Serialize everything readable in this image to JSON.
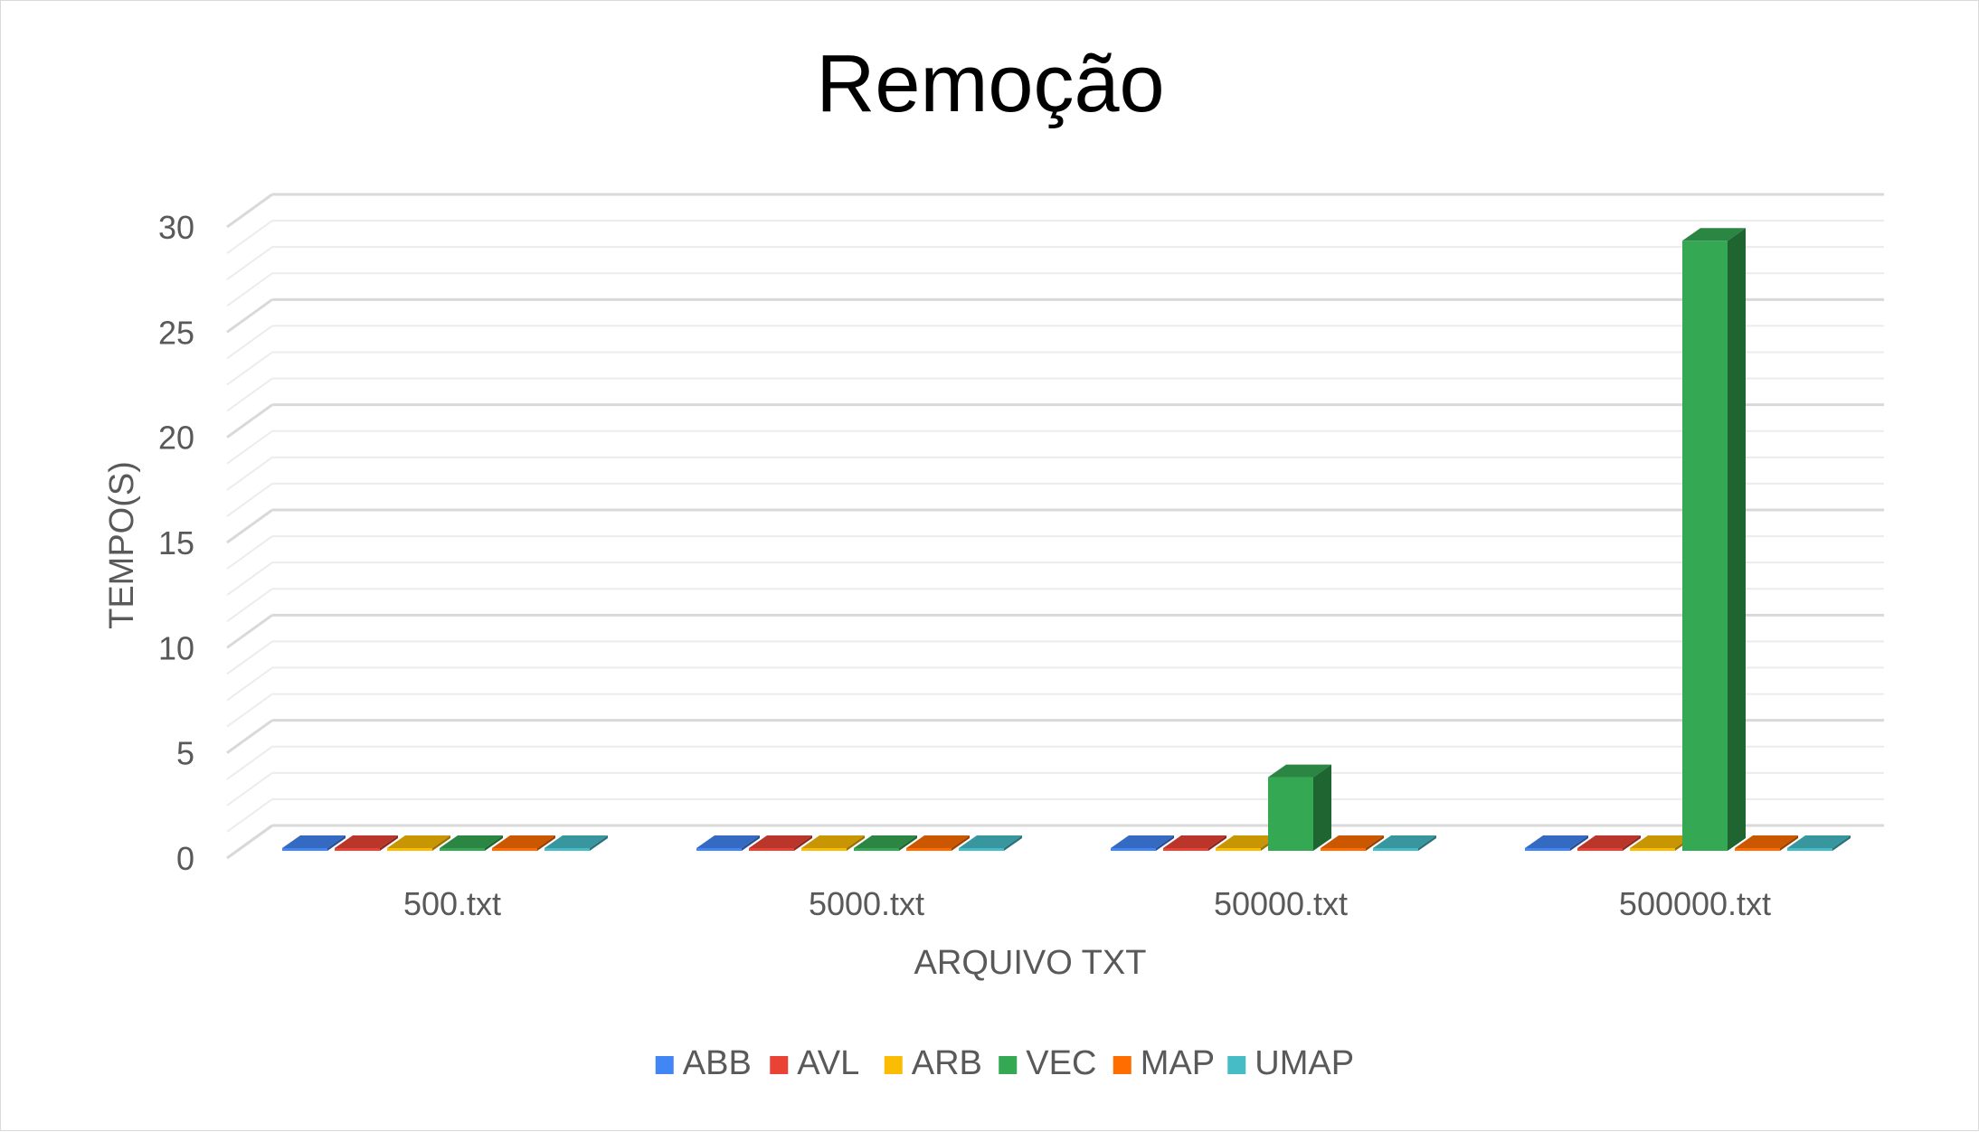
{
  "chart_data": {
    "type": "bar",
    "title": "Remoção",
    "xlabel": "ARQUIVO TXT",
    "ylabel": "TEMPO(S)",
    "categories": [
      "500.txt",
      "5000.txt",
      "50000.txt",
      "500000.txt"
    ],
    "ylim": [
      0,
      30
    ],
    "yticks": [
      0,
      5,
      10,
      15,
      20,
      25,
      30
    ],
    "grid": true,
    "legend_position": "bottom",
    "style": "3d-clustered-column",
    "series": [
      {
        "name": "ABB",
        "color": "#4285F4",
        "values": [
          0.0,
          0.0,
          0.0,
          0.0
        ]
      },
      {
        "name": "AVL",
        "color": "#EA4335",
        "values": [
          0.0,
          0.0,
          0.0,
          0.0
        ]
      },
      {
        "name": "ARB",
        "color": "#FBBC04",
        "values": [
          0.0,
          0.0,
          0.0,
          0.0
        ]
      },
      {
        "name": "VEC",
        "color": "#34A853",
        "values": [
          0.0,
          0.1,
          3.5,
          29.0
        ]
      },
      {
        "name": "MAP",
        "color": "#FF6D01",
        "values": [
          0.0,
          0.0,
          0.0,
          0.05
        ]
      },
      {
        "name": "UMAP",
        "color": "#46BDC6",
        "values": [
          0.0,
          0.0,
          0.0,
          0.0
        ]
      }
    ]
  }
}
